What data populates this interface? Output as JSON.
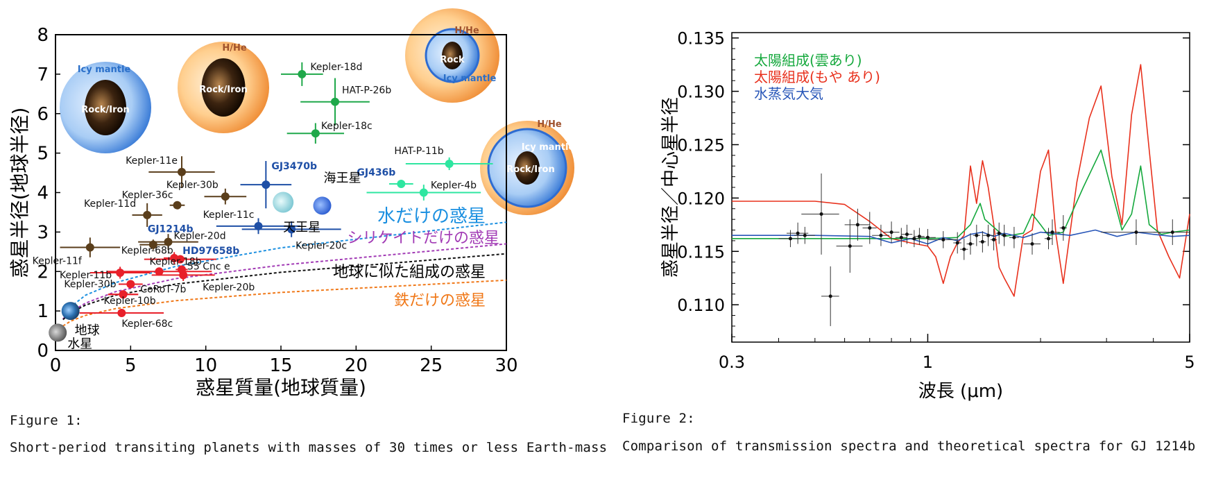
{
  "chart_data": [
    {
      "type": "scatter",
      "xlabel": "惑星質量(地球質量)",
      "ylabel": "惑星半径(地球半径)",
      "xlim": [
        0,
        30
      ],
      "ylim": [
        0,
        8
      ],
      "xticks": [
        "0",
        "5",
        "10",
        "15",
        "20",
        "25",
        "30"
      ],
      "yticks": [
        "0",
        "1",
        "2",
        "3",
        "4",
        "5",
        "6",
        "7",
        "8"
      ],
      "color_key": {
        "brown": "#5a3e1b",
        "red": "#e8202a",
        "blue": "#1e4fa6",
        "green": "#1fa84a",
        "aqua": "#2ee6a0"
      },
      "points": [
        {
          "label": "Kepler-18d",
          "x": 16.4,
          "y": 7.0,
          "xerr": 1.4,
          "yerr": 0.3,
          "color": "green"
        },
        {
          "label": "HAT-P-26b",
          "x": 18.6,
          "y": 6.3,
          "xerr": 2.3,
          "yerr": 0.6,
          "color": "green"
        },
        {
          "label": "Kepler-18c",
          "x": 17.3,
          "y": 5.5,
          "xerr": 1.9,
          "yerr": 0.26,
          "color": "green"
        },
        {
          "label": "HAT-P-11b",
          "x": 26.2,
          "y": 4.73,
          "xerr": 2.9,
          "yerr": 0.16,
          "color": "aqua"
        },
        {
          "label": "GJ436b",
          "x": 23.0,
          "y": 4.22,
          "xerr": 0.8,
          "yerr": 0.1,
          "color": "aqua"
        },
        {
          "label": "Kepler-4b",
          "x": 24.5,
          "y": 4.0,
          "xerr": 3.8,
          "yerr": 0.2,
          "color": "aqua"
        },
        {
          "label": "GJ3470b",
          "x": 14.0,
          "y": 4.2,
          "xerr": 1.7,
          "yerr": 0.6,
          "color": "blue"
        },
        {
          "label": "Kepler-11c",
          "x": 13.5,
          "y": 3.15,
          "xerr": 2.8,
          "yerr": 0.2,
          "color": "blue"
        },
        {
          "label": "Kepler-20c",
          "x": 15.7,
          "y": 3.07,
          "xerr": 3.3,
          "yerr": 0.2,
          "color": "blue"
        },
        {
          "label": "Kepler-11e",
          "x": 8.4,
          "y": 4.52,
          "xerr": 2.2,
          "yerr": 0.4,
          "color": "brown"
        },
        {
          "label": "Kepler-30b",
          "x": 11.3,
          "y": 3.9,
          "xerr": 1.4,
          "yerr": 0.2,
          "color": "brown"
        },
        {
          "label": "Kepler-36c",
          "x": 8.1,
          "y": 3.68,
          "xerr": 0.5,
          "yerr": 0.05,
          "color": "brown"
        },
        {
          "label": "Kepler-11d",
          "x": 6.1,
          "y": 3.43,
          "xerr": 1.0,
          "yerr": 0.3,
          "color": "brown"
        },
        {
          "label": "Kepler-20d",
          "x": 7.5,
          "y": 2.75,
          "xerr": 2.0,
          "yerr": 0.2,
          "color": "brown"
        },
        {
          "label": "GJ1214b",
          "x": 6.5,
          "y": 2.68,
          "xerr": 0.9,
          "yerr": 0.13,
          "color": "brown"
        },
        {
          "label": "Kepler-11f",
          "x": 2.3,
          "y": 2.61,
          "xerr": 2.0,
          "yerr": 0.25,
          "color": "brown"
        },
        {
          "label": "Kepler-68b",
          "x": 8.3,
          "y": 2.31,
          "xerr": 2.4,
          "yerr": 0.1,
          "color": "red"
        },
        {
          "label": "HD97658b",
          "x": 7.9,
          "y": 2.34,
          "xerr": 0.7,
          "yerr": 0.15,
          "color": "red"
        },
        {
          "label": "Kepler-18b",
          "x": 6.9,
          "y": 2.0,
          "xerr": 3.5,
          "yerr": 0.1,
          "color": "red"
        },
        {
          "label": "55 Cnc e",
          "x": 8.4,
          "y": 2.05,
          "xerr": 0.4,
          "yerr": 0.07,
          "color": "red"
        },
        {
          "label": "Kepler-20b",
          "x": 8.5,
          "y": 1.91,
          "xerr": 2.1,
          "yerr": 0.15,
          "color": "red"
        },
        {
          "label": "Kepler-11b",
          "x": 4.3,
          "y": 1.97,
          "xerr": 2.0,
          "yerr": 0.15,
          "color": "red"
        },
        {
          "label": "CoRoT-7b",
          "x": 5.0,
          "y": 1.68,
          "xerr": 0.8,
          "yerr": 0.1,
          "color": "red"
        },
        {
          "label": "Kepler-30b",
          "x": 4.5,
          "y": 1.42,
          "xerr": 1.0,
          "yerr": 0.05,
          "color": "red"
        },
        {
          "label": "Kepler-10b",
          "x": 4.5,
          "y": 1.42,
          "xerr": 1.0,
          "yerr": 0.05,
          "color": "red"
        },
        {
          "label": "Kepler-68c",
          "x": 4.4,
          "y": 0.95,
          "xerr": 2.8,
          "yerr": 0.05,
          "color": "red"
        },
        {
          "label": "地球",
          "x": 1.0,
          "y": 1.0,
          "color": "earth"
        },
        {
          "label": "水星",
          "x": 0.055,
          "y": 0.38,
          "color": "gray"
        },
        {
          "label": "天王星",
          "x": 14.5,
          "y": 4.0,
          "color": "lightblue"
        },
        {
          "label": "海王星",
          "x": 17.1,
          "y": 3.88,
          "color": "blue"
        }
      ],
      "curves": [
        {
          "name": "水だけの惑星",
          "color": "#1a8fe0",
          "x": [
            0.5,
            1,
            2,
            4,
            8,
            15,
            30
          ],
          "y": [
            0.91,
            1.1,
            1.4,
            1.72,
            2.13,
            2.6,
            3.25
          ]
        },
        {
          "name": "シリケイトだけの惑星",
          "color": "#a23bb5",
          "x": [
            0.5,
            1,
            2,
            4,
            8,
            15,
            30
          ],
          "y": [
            0.8,
            0.97,
            1.2,
            1.49,
            1.82,
            2.16,
            2.7
          ]
        },
        {
          "name": "地球に似た組成の惑星",
          "color": "#111111",
          "x": [
            0.5,
            1,
            2,
            4,
            8,
            15,
            30
          ],
          "y": [
            0.78,
            0.95,
            1.15,
            1.4,
            1.68,
            1.98,
            2.45
          ]
        },
        {
          "name": "鉄だけの惑星",
          "color": "#f07818",
          "x": [
            0.5,
            1,
            2,
            4,
            8,
            15,
            30
          ],
          "y": [
            0.62,
            0.74,
            0.89,
            1.06,
            1.26,
            1.47,
            1.78
          ]
        }
      ],
      "insets": [
        {
          "labels": [
            "Icy mantle",
            "Rock/Iron"
          ]
        },
        {
          "labels": [
            "H/He",
            "Rock/Iron"
          ]
        },
        {
          "labels": [
            "H/He",
            "Rock",
            "Icy mantle"
          ]
        },
        {
          "labels": [
            "H/He",
            "Icy mantle",
            "Rock/Iron"
          ]
        }
      ]
    },
    {
      "type": "line",
      "xlabel": "波長 (μm)",
      "ylabel": "惑星半径／中心星半径",
      "xscale": "log",
      "xlim": [
        0.3,
        5
      ],
      "ylim": [
        0.1065,
        0.1355
      ],
      "xticks": [
        "0.3",
        "1",
        "5"
      ],
      "yticks": [
        "0.135",
        "0.130",
        "0.125",
        "0.120",
        "0.115",
        "0.110"
      ],
      "series": [
        {
          "name": "太陽組成(雲あり)",
          "color": "#14a83c",
          "x": [
            0.3,
            0.5,
            0.8,
            1.0,
            1.2,
            1.3,
            1.38,
            1.42,
            1.6,
            1.8,
            1.9,
            2.0,
            2.1,
            2.3,
            2.6,
            2.9,
            3.3,
            3.5,
            3.7,
            3.9,
            4.2,
            4.5,
            5.0
          ],
          "y": [
            0.1162,
            0.1162,
            0.1162,
            0.1162,
            0.1163,
            0.1175,
            0.1195,
            0.118,
            0.1164,
            0.1167,
            0.1185,
            0.1175,
            0.1165,
            0.1168,
            0.121,
            0.1245,
            0.117,
            0.1185,
            0.123,
            0.1175,
            0.1166,
            0.1168,
            0.117
          ]
        },
        {
          "name": "太陽組成(もや あり)",
          "color": "#e8301c",
          "x": [
            0.3,
            0.5,
            0.6,
            0.7,
            0.8,
            0.9,
            1.0,
            1.05,
            1.1,
            1.15,
            1.2,
            1.25,
            1.3,
            1.35,
            1.4,
            1.45,
            1.5,
            1.55,
            1.6,
            1.7,
            1.8,
            1.9,
            2.0,
            2.1,
            2.2,
            2.3,
            2.5,
            2.7,
            2.9,
            3.1,
            3.3,
            3.5,
            3.7,
            3.9,
            4.1,
            4.4,
            4.7,
            5.0
          ],
          "y": [
            0.1197,
            0.1197,
            0.1194,
            0.1178,
            0.1162,
            0.1158,
            0.1155,
            0.1145,
            0.112,
            0.1145,
            0.1158,
            0.1165,
            0.123,
            0.1195,
            0.1235,
            0.121,
            0.1175,
            0.1135,
            0.1125,
            0.1108,
            0.1165,
            0.117,
            0.1225,
            0.1245,
            0.1165,
            0.112,
            0.1215,
            0.1275,
            0.1305,
            0.122,
            0.1175,
            0.1278,
            0.1325,
            0.1245,
            0.117,
            0.1145,
            0.1125,
            0.1185
          ]
        },
        {
          "name": "水蒸気大気",
          "color": "#2856b8",
          "x": [
            0.3,
            0.5,
            0.7,
            0.8,
            0.9,
            1.0,
            1.1,
            1.2,
            1.3,
            1.4,
            1.5,
            1.6,
            1.8,
            2.0,
            2.4,
            2.8,
            3.2,
            3.6,
            4.0,
            4.5,
            5.0
          ],
          "y": [
            0.1165,
            0.1165,
            0.1164,
            0.1158,
            0.1162,
            0.1157,
            0.1163,
            0.116,
            0.1166,
            0.1168,
            0.1164,
            0.1167,
            0.1163,
            0.1168,
            0.1165,
            0.117,
            0.1164,
            0.1168,
            0.1166,
            0.1164,
            0.1165
          ]
        }
      ],
      "observations": [
        {
          "x": 0.43,
          "y": 0.1162,
          "xerr": 0.03,
          "yerr": 0.0008
        },
        {
          "x": 0.45,
          "y": 0.1167,
          "xerr": 0.03,
          "yerr": 0.001
        },
        {
          "x": 0.47,
          "y": 0.1165,
          "xerr": 0.03,
          "yerr": 0.0008
        },
        {
          "x": 0.52,
          "y": 0.1185,
          "xerr": 0.06,
          "yerr": 0.0038
        },
        {
          "x": 0.55,
          "y": 0.1108,
          "xerr": 0.03,
          "yerr": 0.0028
        },
        {
          "x": 0.62,
          "y": 0.1155,
          "xerr": 0.05,
          "yerr": 0.0025
        },
        {
          "x": 0.65,
          "y": 0.1175,
          "xerr": 0.05,
          "yerr": 0.0015
        },
        {
          "x": 0.7,
          "y": 0.1172,
          "xerr": 0.03,
          "yerr": 0.0015
        },
        {
          "x": 0.75,
          "y": 0.1165,
          "xerr": 0.04,
          "yerr": 0.001
        },
        {
          "x": 0.8,
          "y": 0.1168,
          "xerr": 0.04,
          "yerr": 0.001
        },
        {
          "x": 0.85,
          "y": 0.1163,
          "xerr": 0.03,
          "yerr": 0.0009
        },
        {
          "x": 0.88,
          "y": 0.1166,
          "xerr": 0.03,
          "yerr": 0.0009
        },
        {
          "x": 0.92,
          "y": 0.1162,
          "xerr": 0.03,
          "yerr": 0.0008
        },
        {
          "x": 0.95,
          "y": 0.1164,
          "xerr": 0.03,
          "yerr": 0.0008
        },
        {
          "x": 1.0,
          "y": 0.1163,
          "xerr": 0.05,
          "yerr": 0.0008
        },
        {
          "x": 1.1,
          "y": 0.1161,
          "xerr": 0.1,
          "yerr": 0.0008
        },
        {
          "x": 1.2,
          "y": 0.1158,
          "xerr": 0.03,
          "yerr": 0.001
        },
        {
          "x": 1.25,
          "y": 0.1152,
          "xerr": 0.03,
          "yerr": 0.001
        },
        {
          "x": 1.3,
          "y": 0.1157,
          "xerr": 0.03,
          "yerr": 0.001
        },
        {
          "x": 1.35,
          "y": 0.1165,
          "xerr": 0.03,
          "yerr": 0.001
        },
        {
          "x": 1.4,
          "y": 0.1159,
          "xerr": 0.03,
          "yerr": 0.001
        },
        {
          "x": 1.45,
          "y": 0.1165,
          "xerr": 0.05,
          "yerr": 0.001
        },
        {
          "x": 1.5,
          "y": 0.1161,
          "xerr": 0.03,
          "yerr": 0.001
        },
        {
          "x": 1.55,
          "y": 0.1167,
          "xerr": 0.03,
          "yerr": 0.001
        },
        {
          "x": 1.6,
          "y": 0.1165,
          "xerr": 0.03,
          "yerr": 0.001
        },
        {
          "x": 1.7,
          "y": 0.1163,
          "xerr": 0.05,
          "yerr": 0.001
        },
        {
          "x": 1.9,
          "y": 0.1157,
          "xerr": 0.1,
          "yerr": 0.001
        },
        {
          "x": 2.1,
          "y": 0.1162,
          "xerr": 0.05,
          "yerr": 0.001
        },
        {
          "x": 2.15,
          "y": 0.1168,
          "xerr": 0.1,
          "yerr": 0.0012
        },
        {
          "x": 2.3,
          "y": 0.1172,
          "xerr": 0.05,
          "yerr": 0.0012
        },
        {
          "x": 3.6,
          "y": 0.1168,
          "xerr": 0.7,
          "yerr": 0.0012
        },
        {
          "x": 4.5,
          "y": 0.1168,
          "xerr": 0.5,
          "yerr": 0.0012
        }
      ]
    }
  ],
  "captions": {
    "fig1_title": "Figure 1:",
    "fig1_text": "Short-period transiting planets with masses of 30 times or less Earth-mass",
    "fig2_title": "Figure 2:",
    "fig2_text": "Comparison of transmission spectra and theoretical spectra for GJ 1214b"
  }
}
